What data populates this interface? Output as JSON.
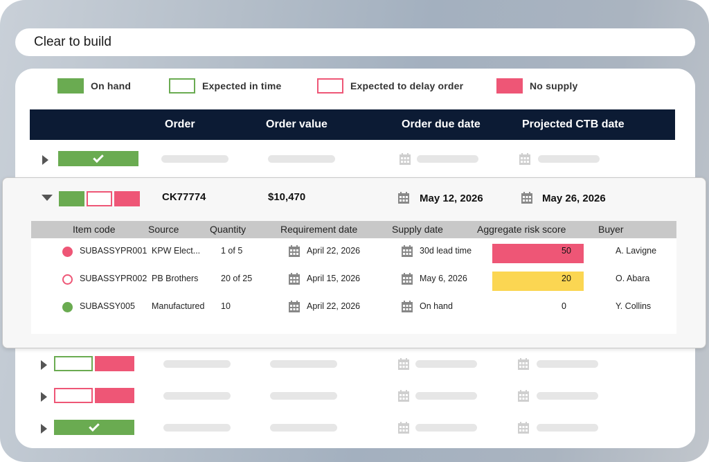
{
  "window": {
    "title": "Clear to build"
  },
  "colors": {
    "green": "#6aab51",
    "red": "#ee5676",
    "yellow": "#fbd652",
    "header_bg": "#0c1b34"
  },
  "legend": [
    {
      "label": "On hand",
      "style": "fill-green"
    },
    {
      "label": "Expected in time",
      "style": "outline-green"
    },
    {
      "label": "Expected to delay order",
      "style": "outline-red"
    },
    {
      "label": "No supply",
      "style": "fill-red"
    }
  ],
  "table": {
    "columns": [
      "Order",
      "Order value",
      "Order due date",
      "Projected CTB date"
    ]
  },
  "expanded_order": {
    "order": "CK77774",
    "value": "$10,470",
    "due_date": "May 12, 2026",
    "ctb_date": "May 26, 2026",
    "status": [
      "fill-green",
      "outline-red",
      "fill-red"
    ],
    "sub_columns": [
      "Item code",
      "Source",
      "Quantity",
      "Requirement date",
      "Supply date",
      "Aggregate risk score",
      "Buyer"
    ],
    "items": [
      {
        "status": "fill-red",
        "item_code": "SUBASSYPR001",
        "source": "KPW Elect...",
        "quantity": "1 of 5",
        "requirement_date": "April 22, 2026",
        "supply_date": "30d lead time",
        "risk_score": "50",
        "risk_level": "high",
        "buyer": "A. Lavigne"
      },
      {
        "status": "outline-red",
        "item_code": "SUBASSYPR002",
        "source": "PB Brothers",
        "quantity": "20 of 25",
        "requirement_date": "April 15, 2026",
        "supply_date": "May 6, 2026",
        "risk_score": "20",
        "risk_level": "medium",
        "buyer": "O. Abara"
      },
      {
        "status": "fill-green",
        "item_code": "SUBASSY005",
        "source": "Manufactured",
        "quantity": "10",
        "requirement_date": "April 22, 2026",
        "supply_date": "On hand",
        "risk_score": "0",
        "risk_level": "none",
        "buyer": "Y. Collins"
      }
    ]
  },
  "collapsed_rows": [
    {
      "status": [
        "fill-green-check"
      ]
    },
    {
      "status": [
        "outline-green",
        "fill-red"
      ]
    },
    {
      "status": [
        "outline-red",
        "fill-red"
      ]
    },
    {
      "status": [
        "fill-green-check"
      ]
    }
  ],
  "icons": {
    "row_toggle_collapsed": "caret-right-icon",
    "row_toggle_expanded": "caret-down-icon",
    "date": "calendar-icon",
    "complete": "checkmark-icon"
  }
}
